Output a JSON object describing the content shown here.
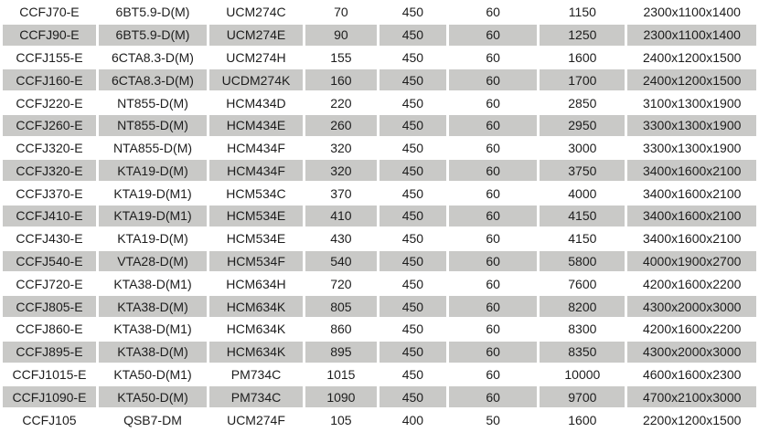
{
  "colors": {
    "row_alt_bg": "#c9c9c7",
    "row_bg": "#ffffff",
    "text": "#1d1d1d"
  },
  "table": {
    "rows": [
      {
        "shaded": false,
        "cells": [
          "CCFJ70-E",
          "6BT5.9-D(M)",
          "UCM274C",
          "70",
          "450",
          "60",
          "1150",
          "2300x1100x1400"
        ]
      },
      {
        "shaded": true,
        "cells": [
          "CCFJ90-E",
          "6BT5.9-D(M)",
          "UCM274E",
          "90",
          "450",
          "60",
          "1250",
          "2300x1100x1400"
        ]
      },
      {
        "shaded": false,
        "cells": [
          "CCFJ155-E",
          "6CTA8.3-D(M)",
          "UCM274H",
          "155",
          "450",
          "60",
          "1600",
          "2400x1200x1500"
        ]
      },
      {
        "shaded": true,
        "cells": [
          "CCFJ160-E",
          "6CTA8.3-D(M)",
          "UCDM274K",
          "160",
          "450",
          "60",
          "1700",
          "2400x1200x1500"
        ]
      },
      {
        "shaded": false,
        "cells": [
          "CCFJ220-E",
          "NT855-D(M)",
          "HCM434D",
          "220",
          "450",
          "60",
          "2850",
          "3100x1300x1900"
        ]
      },
      {
        "shaded": true,
        "cells": [
          "CCFJ260-E",
          "NT855-D(M)",
          "HCM434E",
          "260",
          "450",
          "60",
          "2950",
          "3300x1300x1900"
        ]
      },
      {
        "shaded": false,
        "cells": [
          "CCFJ320-E",
          "NTA855-D(M)",
          "HCM434F",
          "320",
          "450",
          "60",
          "3000",
          "3300x1300x1900"
        ]
      },
      {
        "shaded": true,
        "cells": [
          "CCFJ320-E",
          "KTA19-D(M)",
          "HCM434F",
          "320",
          "450",
          "60",
          "3750",
          "3400x1600x2100"
        ]
      },
      {
        "shaded": false,
        "cells": [
          "CCFJ370-E",
          "KTA19-D(M1)",
          "HCM534C",
          "370",
          "450",
          "60",
          "4000",
          "3400x1600x2100"
        ]
      },
      {
        "shaded": true,
        "cells": [
          "CCFJ410-E",
          "KTA19-D(M1)",
          "HCM534E",
          "410",
          "450",
          "60",
          "4150",
          "3400x1600x2100"
        ]
      },
      {
        "shaded": false,
        "cells": [
          "CCFJ430-E",
          "KTA19-D(M)",
          "HCM534E",
          "430",
          "450",
          "60",
          "4150",
          "3400x1600x2100"
        ]
      },
      {
        "shaded": true,
        "cells": [
          "CCFJ540-E",
          "VTA28-D(M)",
          "HCM534F",
          "540",
          "450",
          "60",
          "5800",
          "4000x1900x2700"
        ]
      },
      {
        "shaded": false,
        "cells": [
          "CCFJ720-E",
          "KTA38-D(M1)",
          "HCM634H",
          "720",
          "450",
          "60",
          "7600",
          "4200x1600x2200"
        ]
      },
      {
        "shaded": true,
        "cells": [
          "CCFJ805-E",
          "KTA38-D(M)",
          "HCM634K",
          "805",
          "450",
          "60",
          "8200",
          "4300x2000x3000"
        ]
      },
      {
        "shaded": false,
        "cells": [
          "CCFJ860-E",
          "KTA38-D(M1)",
          "HCM634K",
          "860",
          "450",
          "60",
          "8300",
          "4200x1600x2200"
        ]
      },
      {
        "shaded": true,
        "cells": [
          "CCFJ895-E",
          "KTA38-D(M)",
          "HCM634K",
          "895",
          "450",
          "60",
          "8350",
          "4300x2000x3000"
        ]
      },
      {
        "shaded": false,
        "cells": [
          "CCFJ1015-E",
          "KTA50-D(M1)",
          "PM734C",
          "1015",
          "450",
          "60",
          "10000",
          "4600x1600x2300"
        ]
      },
      {
        "shaded": true,
        "cells": [
          "CCFJ1090-E",
          "KTA50-D(M)",
          "PM734C",
          "1090",
          "450",
          "60",
          "9700",
          "4700x2100x3000"
        ]
      },
      {
        "shaded": false,
        "cells": [
          "CCFJ105",
          "QSB7-DM",
          "UCM274F",
          "105",
          "400",
          "50",
          "1600",
          "2200x1200x1500"
        ]
      }
    ]
  }
}
